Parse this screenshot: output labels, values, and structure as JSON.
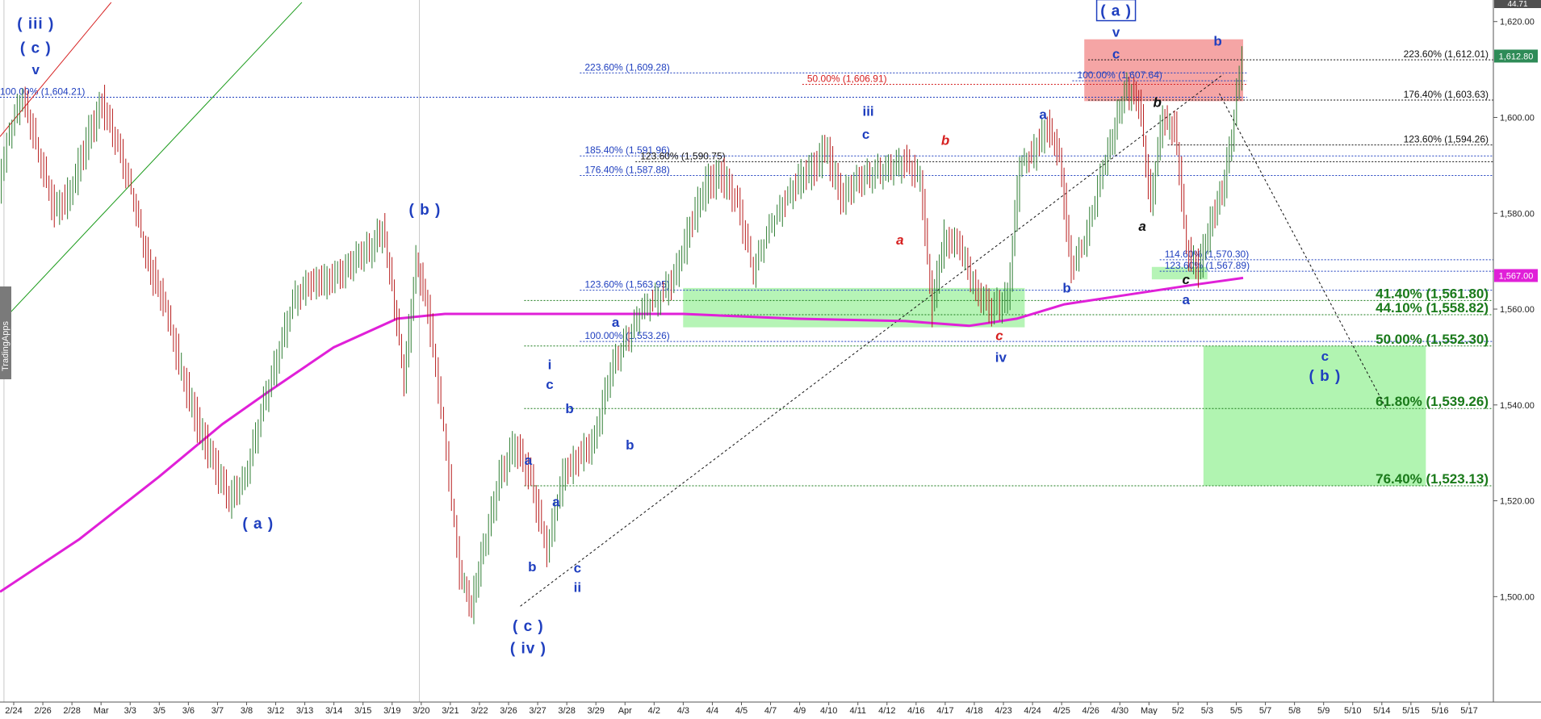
{
  "chart_data": {
    "type": "line",
    "title": "",
    "xlabel": "",
    "ylabel": "",
    "ylim": [
      1480,
      1625
    ],
    "price_ticks": [
      "1,620.00",
      "1,600.00",
      "1,580.00",
      "1,560.00",
      "1,540.00",
      "1,520.00",
      "1,500.00"
    ],
    "current_price_tag": "1,612.80",
    "ma_price_tag": "1,567.00",
    "top_price_tag": "44.71",
    "watermark": "TradingApps",
    "x_labels": [
      "2/24",
      "2/26",
      "2/28",
      "Mar",
      "3/3",
      "3/5",
      "3/6",
      "3/7",
      "3/8",
      "3/12",
      "3/13",
      "3/14",
      "3/15",
      "3/19",
      "3/20",
      "3/21",
      "3/22",
      "3/26",
      "3/27",
      "3/28",
      "3/29",
      "Apr",
      "4/2",
      "4/3",
      "4/4",
      "4/5",
      "4/7",
      "4/9",
      "4/10",
      "4/11",
      "4/12",
      "4/16",
      "4/17",
      "4/18",
      "4/23",
      "4/24",
      "4/25",
      "4/26",
      "4/30",
      "May",
      "5/2",
      "5/3",
      "5/5",
      "5/7",
      "5/8",
      "5/9",
      "5/10",
      "5/14",
      "5/15",
      "5/16",
      "5/17"
    ],
    "price_path": [
      [
        0,
        1585
      ],
      [
        1,
        1596
      ],
      [
        3,
        1604.2
      ],
      [
        5,
        1592
      ],
      [
        7,
        1580
      ],
      [
        9,
        1584
      ],
      [
        11,
        1595
      ],
      [
        13,
        1603
      ],
      [
        15,
        1594
      ],
      [
        17,
        1583
      ],
      [
        18.5,
        1571
      ],
      [
        21,
        1560
      ],
      [
        23,
        1547
      ],
      [
        25,
        1536
      ],
      [
        27,
        1528
      ],
      [
        29,
        1520
      ],
      [
        31,
        1524
      ],
      [
        33,
        1538
      ],
      [
        35,
        1550
      ],
      [
        37,
        1562
      ],
      [
        39,
        1566
      ],
      [
        41,
        1566
      ],
      [
        43,
        1567
      ],
      [
        45,
        1570
      ],
      [
        47,
        1573
      ],
      [
        48.3,
        1576.5
      ],
      [
        49.5,
        1565
      ],
      [
        51,
        1545
      ],
      [
        52.5,
        1570
      ],
      [
        54,
        1560
      ],
      [
        56,
        1535
      ],
      [
        58,
        1505
      ],
      [
        59.5,
        1498
      ],
      [
        61,
        1510
      ],
      [
        63,
        1525
      ],
      [
        65,
        1532
      ],
      [
        67,
        1524
      ],
      [
        69,
        1509
      ],
      [
        71,
        1525
      ],
      [
        73,
        1529
      ],
      [
        75,
        1533
      ],
      [
        77,
        1548
      ],
      [
        79,
        1554
      ],
      [
        81,
        1560
      ],
      [
        83,
        1562
      ],
      [
        85,
        1566
      ],
      [
        87,
        1577
      ],
      [
        89,
        1586
      ],
      [
        91,
        1588
      ],
      [
        93,
        1582
      ],
      [
        95,
        1568
      ],
      [
        97,
        1577
      ],
      [
        99,
        1583
      ],
      [
        101,
        1588
      ],
      [
        103,
        1590
      ],
      [
        104,
        1594.5
      ],
      [
        106,
        1583
      ],
      [
        108,
        1586
      ],
      [
        110,
        1588
      ],
      [
        112,
        1589
      ],
      [
        114,
        1591
      ],
      [
        116,
        1588
      ],
      [
        117.5,
        1560
      ],
      [
        119,
        1575
      ],
      [
        121,
        1573
      ],
      [
        123,
        1563
      ],
      [
        125,
        1560
      ],
      [
        127,
        1562
      ],
      [
        128.5,
        1590
      ],
      [
        130,
        1592
      ],
      [
        132,
        1598
      ],
      [
        133.5,
        1592
      ],
      [
        135,
        1568
      ],
      [
        137,
        1576
      ],
      [
        139,
        1590
      ],
      [
        140.5,
        1598
      ],
      [
        142,
        1606
      ],
      [
        143.5,
        1603.5
      ],
      [
        145,
        1582
      ],
      [
        146.5,
        1600
      ],
      [
        148,
        1598
      ],
      [
        149.5,
        1573
      ],
      [
        151,
        1568
      ],
      [
        152.5,
        1578
      ],
      [
        154,
        1584
      ],
      [
        155.5,
        1600
      ],
      [
        156.5,
        1612.8
      ]
    ],
    "ma_path": [
      [
        0,
        1501
      ],
      [
        10,
        1512
      ],
      [
        20,
        1525
      ],
      [
        28,
        1536
      ],
      [
        34,
        1543
      ],
      [
        42,
        1552
      ],
      [
        50,
        1558
      ],
      [
        56,
        1559
      ],
      [
        70,
        1559
      ],
      [
        86,
        1559
      ],
      [
        100,
        1558
      ],
      [
        114,
        1557.5
      ],
      [
        122,
        1556.5
      ],
      [
        128,
        1558
      ],
      [
        134,
        1561
      ],
      [
        142,
        1563
      ],
      [
        150,
        1565
      ],
      [
        156.5,
        1566.5
      ]
    ],
    "fib_levels": [
      {
        "label": "100.00% (1,604.21)",
        "price": 1604.21,
        "x0": 0,
        "x1": 157,
        "color": "#1f3fbf",
        "label_at": "start-left"
      },
      {
        "label": "223.60% (1,609.28)",
        "price": 1609.28,
        "x0": 73,
        "x1": 157,
        "color": "#1f3fbf"
      },
      {
        "label": "50.00% (1,606.91)",
        "price": 1606.91,
        "x0": 101,
        "x1": 157,
        "color": "#d62020"
      },
      {
        "label": "100.00% (1,607.64)",
        "price": 1607.64,
        "x0": 135,
        "x1": 157,
        "color": "#1f3fbf"
      },
      {
        "label": "223.60% (1,612.01)",
        "price": 1612.01,
        "x0": 137,
        "x1": 188,
        "color": "#111111",
        "label_at": "end"
      },
      {
        "label": "176.40% (1,603.63)",
        "price": 1603.63,
        "x0": 137,
        "x1": 188,
        "color": "#111111",
        "label_at": "end"
      },
      {
        "label": "185.40% (1,591.96)",
        "price": 1591.96,
        "x0": 73,
        "x1": 188,
        "color": "#1f3fbf"
      },
      {
        "label": "123.60% (1,590.75)",
        "price": 1590.75,
        "x0": 80,
        "x1": 188,
        "color": "#111111"
      },
      {
        "label": "176.40% (1,587.88)",
        "price": 1587.88,
        "x0": 73,
        "x1": 188,
        "color": "#1f3fbf"
      },
      {
        "label": "123.60% (1,594.26)",
        "price": 1594.26,
        "x0": 147,
        "x1": 188,
        "color": "#111111",
        "label_at": "end"
      },
      {
        "label": "114.60% (1,570.30)",
        "price": 1570.3,
        "x0": 146,
        "x1": 188,
        "color": "#1f3fbf"
      },
      {
        "label": "123.60% (1,567.89)",
        "price": 1567.89,
        "x0": 146,
        "x1": 188,
        "color": "#1f3fbf"
      },
      {
        "label": "123.60% (1,563.95)",
        "price": 1563.95,
        "x0": 73,
        "x1": 188,
        "color": "#1f3fbf"
      },
      {
        "label": "100.00% (1,553.26)",
        "price": 1553.26,
        "x0": 73,
        "x1": 188,
        "color": "#1f3fbf"
      },
      {
        "label": "41.40% (1,561.80)",
        "price": 1561.8,
        "x0": 66,
        "x1": 188,
        "color": "#1a7a1a",
        "big": true,
        "label_at": "end"
      },
      {
        "label": "44.10% (1,558.82)",
        "price": 1558.82,
        "x0": 66,
        "x1": 188,
        "color": "#1a7a1a",
        "big": true,
        "label_at": "end"
      },
      {
        "label": "50.00% (1,552.30)",
        "price": 1552.3,
        "x0": 66,
        "x1": 188,
        "color": "#1a7a1a",
        "big": true,
        "label_at": "end"
      },
      {
        "label": "61.80% (1,539.26)",
        "price": 1539.26,
        "x0": 66,
        "x1": 188,
        "color": "#1a7a1a",
        "big": true,
        "label_at": "end"
      },
      {
        "label": "76.40% (1,523.13)",
        "price": 1523.13,
        "x0": 66,
        "x1": 188,
        "color": "#1a7a1a",
        "big": true,
        "label_at": "end"
      }
    ],
    "zones": [
      {
        "x0": 86,
        "x1": 129,
        "p0": 1564.4,
        "p1": 1556.2,
        "fill": "#9df09d",
        "opacity": 0.75
      },
      {
        "x0": 145,
        "x1": 152,
        "p0": 1568.8,
        "p1": 1566.2,
        "fill": "#9df09d",
        "opacity": 0.75
      },
      {
        "x0": 136.5,
        "x1": 156.5,
        "p0": 1616.3,
        "p1": 1603.4,
        "fill": "#f28f8f",
        "opacity": 0.8
      },
      {
        "x0": 151.5,
        "x1": 179.5,
        "p0": 1552.3,
        "p1": 1523.13,
        "fill": "#a8f3a8",
        "opacity": 0.9
      }
    ],
    "wave_labels": [
      {
        "text": "( iii )",
        "x": 4.5,
        "price": 1618.5,
        "color": "#1f3fbf",
        "kind": "paren"
      },
      {
        "text": "( c )",
        "x": 4.5,
        "price": 1613.5,
        "color": "#1f3fbf",
        "kind": "paren"
      },
      {
        "text": "v",
        "x": 4.5,
        "price": 1609.0,
        "color": "#1f3fbf"
      },
      {
        "text": "( b )",
        "x": 53.5,
        "price": 1579.7,
        "color": "#1f3fbf",
        "kind": "paren"
      },
      {
        "text": "( a )",
        "x": 32.5,
        "price": 1514.2,
        "color": "#1f3fbf",
        "kind": "paren"
      },
      {
        "text": "( c )",
        "x": 66.5,
        "price": 1492.8,
        "color": "#1f3fbf",
        "kind": "paren"
      },
      {
        "text": "( iv )",
        "x": 66.5,
        "price": 1488.2,
        "color": "#1f3fbf",
        "kind": "paren"
      },
      {
        "text": "i",
        "x": 69.2,
        "price": 1547.5,
        "color": "#1f3fbf"
      },
      {
        "text": "c",
        "x": 69.2,
        "price": 1543.3,
        "color": "#1f3fbf"
      },
      {
        "text": "a",
        "x": 66.5,
        "price": 1527.5,
        "color": "#1f3fbf"
      },
      {
        "text": "a",
        "x": 70.0,
        "price": 1518.8,
        "color": "#1f3fbf"
      },
      {
        "text": "b",
        "x": 67.0,
        "price": 1505.3,
        "color": "#1f3fbf"
      },
      {
        "text": "b",
        "x": 71.7,
        "price": 1538.3,
        "color": "#1f3fbf"
      },
      {
        "text": "c",
        "x": 72.7,
        "price": 1505.0,
        "color": "#1f3fbf"
      },
      {
        "text": "ii",
        "x": 72.7,
        "price": 1501.0,
        "color": "#1f3fbf"
      },
      {
        "text": "a",
        "x": 77.5,
        "price": 1556.3,
        "color": "#1f3fbf"
      },
      {
        "text": "b",
        "x": 79.3,
        "price": 1530.7,
        "color": "#1f3fbf"
      },
      {
        "text": "iii",
        "x": 109.3,
        "price": 1600.3,
        "color": "#1f3fbf"
      },
      {
        "text": "c",
        "x": 109.0,
        "price": 1595.5,
        "color": "#1f3fbf"
      },
      {
        "text": "b",
        "x": 119.0,
        "price": 1594.3,
        "color": "#d62020",
        "italic": true
      },
      {
        "text": "a",
        "x": 113.3,
        "price": 1573.5,
        "color": "#d62020",
        "italic": true
      },
      {
        "text": "a",
        "x": 131.3,
        "price": 1599.7,
        "color": "#1f3fbf"
      },
      {
        "text": "b",
        "x": 134.3,
        "price": 1563.5,
        "color": "#1f3fbf"
      },
      {
        "text": "c",
        "x": 125.8,
        "price": 1553.5,
        "color": "#d62020",
        "italic": true
      },
      {
        "text": "iv",
        "x": 126.0,
        "price": 1549.0,
        "color": "#1f3fbf"
      },
      {
        "text": "v",
        "x": 140.5,
        "price": 1616.8,
        "color": "#1f3fbf"
      },
      {
        "text": "c",
        "x": 140.5,
        "price": 1612.3,
        "color": "#1f3fbf"
      },
      {
        "text": "b",
        "x": 145.7,
        "price": 1602.2,
        "color": "#111111",
        "italic": true
      },
      {
        "text": "a",
        "x": 143.8,
        "price": 1576.3,
        "color": "#111111",
        "italic": true
      },
      {
        "text": "c",
        "x": 149.3,
        "price": 1565.2,
        "color": "#111111",
        "italic": true
      },
      {
        "text": "a",
        "x": 149.3,
        "price": 1561.0,
        "color": "#1f3fbf"
      },
      {
        "text": "b",
        "x": 153.3,
        "price": 1615.0,
        "color": "#1f3fbf"
      },
      {
        "text": "c",
        "x": 166.8,
        "price": 1549.2,
        "color": "#1f3fbf"
      },
      {
        "text": "( b )",
        "x": 166.8,
        "price": 1545.0,
        "color": "#1f3fbf",
        "kind": "paren"
      }
    ],
    "boxed_label": {
      "text": "( a )",
      "x": 140.5,
      "price": 1621.2,
      "color": "#1f3fbf"
    },
    "trendlines": [
      {
        "x0": 0,
        "p0": 1596,
        "x1": 14,
        "p1": 1624,
        "color": "#d62020",
        "dashed": false
      },
      {
        "x0": 0,
        "p0": 1557,
        "x1": 38,
        "p1": 1624,
        "color": "#1a9a1a",
        "dashed": false
      },
      {
        "x0": 65.5,
        "p0": 1498.0,
        "x1": 154,
        "p1": 1609,
        "color": "#111111",
        "dashed": true
      },
      {
        "x0": 153.5,
        "p0": 1605,
        "x1": 174.5,
        "p1": 1539.3,
        "color": "#111111",
        "dashed": true
      }
    ]
  }
}
